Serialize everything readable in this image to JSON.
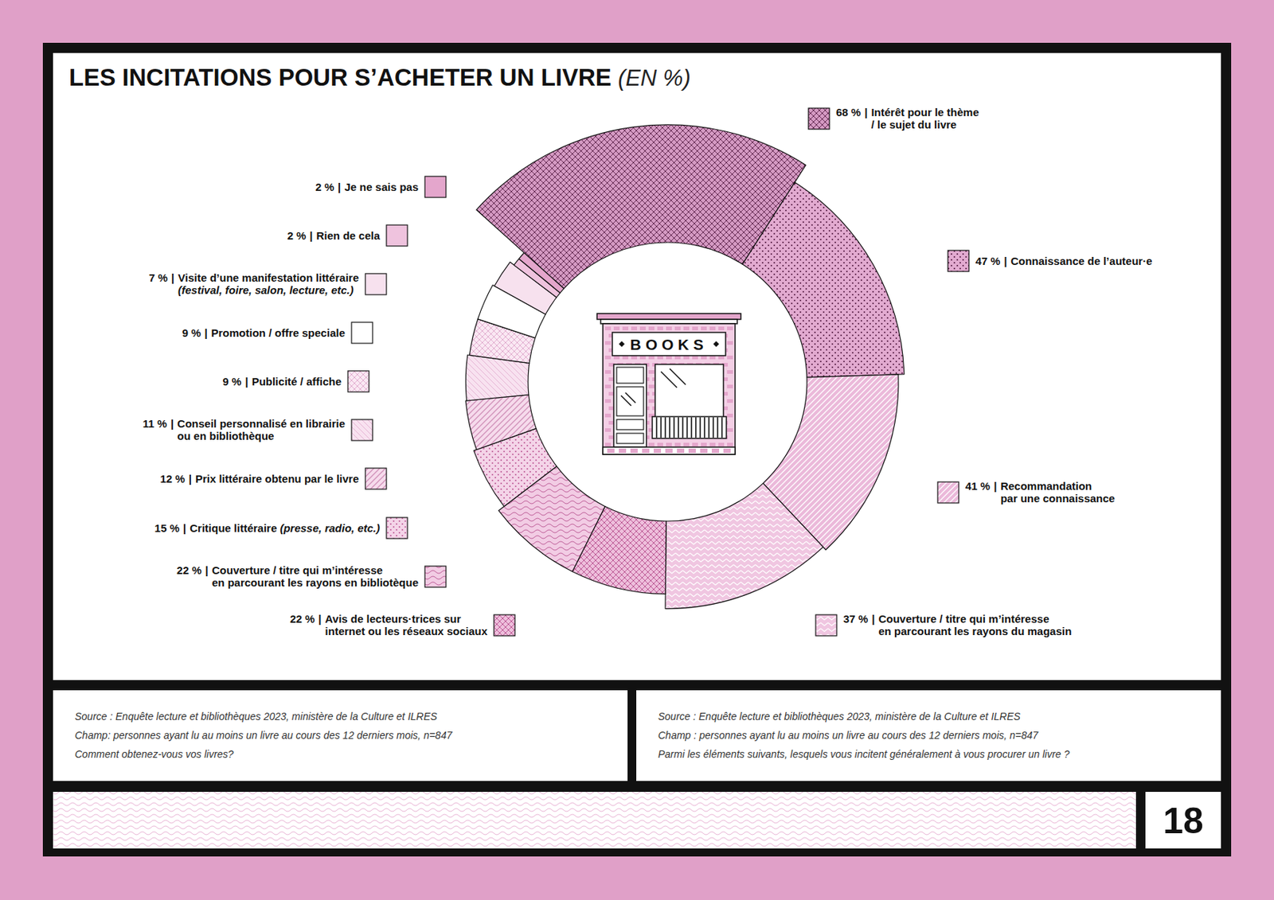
{
  "chart_data": {
    "type": "pie",
    "title": "LES INCITATIONS POUR S’ACHETER UN LIVRE",
    "subtitle": "(EN %)",
    "categories": [
      "Intérêt pour le thème\n/ le sujet du livre",
      "Connaissance de l’auteur·e",
      "Recommandation\npar une connaissance",
      "Couverture / titre qui m’intéresse\nen parcourant les rayons du magasin",
      "Avis de lecteurs·trices sur\ninternet ou les réseaux sociaux",
      "Couverture / titre qui m’intéresse\nen parcourant les rayons en bibliotèque",
      "Critique littéraire (presse, radio, etc.)",
      "Prix littéraire obtenu par le livre",
      "Conseil personnalisé en librairie\nou en bibliothèque",
      "Publicité / affiche",
      "Promotion / offre speciale",
      "Visite d’une manifestation littéraire\n(festival, foire, salon, lecture, etc.)",
      "Rien de cela",
      "Je ne sais pas"
    ],
    "values": [
      68,
      47,
      41,
      37,
      22,
      22,
      15,
      12,
      11,
      9,
      9,
      7,
      2,
      2
    ],
    "value_labels": [
      "68 %",
      "47 %",
      "41 %",
      "37 %",
      "22 %",
      "22 %",
      "15 %",
      "12 %",
      "11 %",
      "9 %",
      "9 %",
      "7 %",
      "2 %",
      "2 %"
    ],
    "separator": "|",
    "colors": [
      "#d59ac3",
      "#e2aad0",
      "#ebb9da",
      "#f0c6e1",
      "#eebfdc",
      "#f2cce4",
      "#f4d4e8",
      "#f6dbec",
      "#f8e2f0",
      "#fae8f3",
      "#ffffff",
      "#f7e1ee",
      "#efc3de",
      "#e4a6cc"
    ],
    "center_label": "BOOKS"
  },
  "footer": {
    "left": [
      "Source : Enquête lecture et bibliothèques 2023, ministère de la Culture et ILRES",
      "Champ: personnes ayant lu au moins un livre au cours des 12 derniers mois, n=847",
      "Comment obtenez-vous vos livres?"
    ],
    "right": [
      "Source : Enquête lecture et bibliothèques 2023, ministère de la Culture et ILRES",
      "Champ : personnes ayant lu au moins un livre au cours des 12 derniers mois, n=847",
      "Parmi les éléments suivants, lesquels vous incitent généralement à vous procurer un livre ?"
    ]
  },
  "page_number": "18"
}
